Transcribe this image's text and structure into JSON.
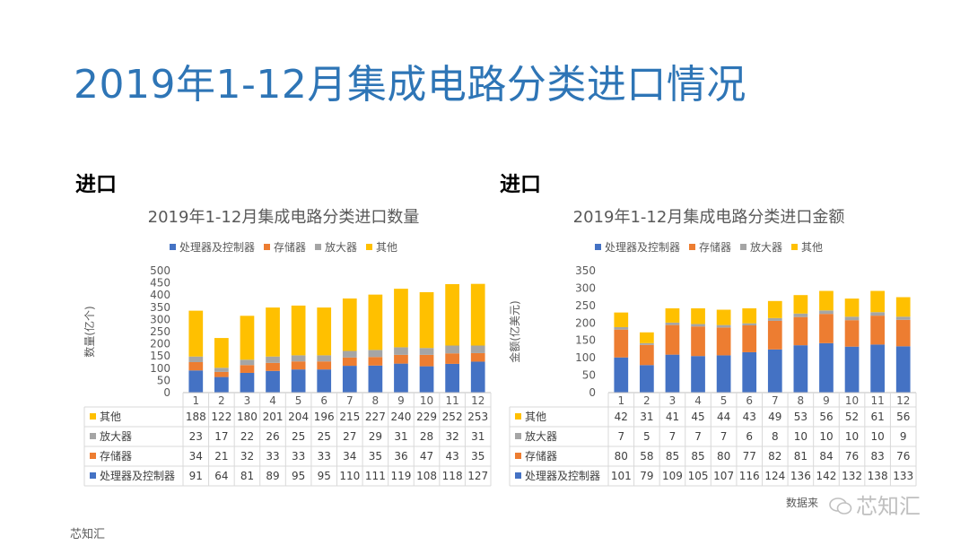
{
  "page": {
    "title": "2019年1-12月集成电路分类进口情况",
    "left_heading": "进口",
    "right_heading": "进口",
    "source_text": "数据来",
    "watermark": "芯知汇",
    "footer": "芯知汇"
  },
  "chart_data": [
    {
      "type": "bar",
      "stacked": true,
      "title": "2019年1-12月集成电路分类进口数量",
      "ylabel": "数量(亿个)",
      "ylim": [
        0,
        500
      ],
      "yticks": [
        0,
        50,
        100,
        150,
        200,
        250,
        300,
        350,
        400,
        450,
        500
      ],
      "categories": [
        "1",
        "2",
        "3",
        "4",
        "5",
        "6",
        "7",
        "8",
        "9",
        "10",
        "11",
        "12"
      ],
      "legend_position": "top",
      "series": [
        {
          "name": "处理器及控制器",
          "color": "#4472C4",
          "values": [
            91,
            64,
            81,
            89,
            95,
            95,
            110,
            111,
            119,
            108,
            118,
            127
          ]
        },
        {
          "name": "存储器",
          "color": "#ED7D31",
          "values": [
            34,
            21,
            32,
            33,
            33,
            33,
            34,
            35,
            36,
            47,
            43,
            35
          ]
        },
        {
          "name": "放大器",
          "color": "#A5A5A5",
          "values": [
            23,
            17,
            22,
            26,
            25,
            25,
            27,
            29,
            31,
            28,
            32,
            31
          ]
        },
        {
          "name": "其他",
          "color": "#FFC000",
          "values": [
            188,
            122,
            180,
            201,
            204,
            196,
            215,
            227,
            240,
            229,
            252,
            253
          ]
        }
      ]
    },
    {
      "type": "bar",
      "stacked": true,
      "title": "2019年1-12月集成电路分类进口金额",
      "ylabel": "金额(亿美元)",
      "ylim": [
        0,
        350
      ],
      "yticks": [
        0,
        50,
        100,
        150,
        200,
        250,
        300,
        350
      ],
      "categories": [
        "1",
        "2",
        "3",
        "4",
        "5",
        "6",
        "7",
        "8",
        "9",
        "10",
        "11",
        "12"
      ],
      "legend_position": "top",
      "series": [
        {
          "name": "处理器及控制器",
          "color": "#4472C4",
          "values": [
            101,
            79,
            109,
            105,
            107,
            116,
            124,
            136,
            142,
            132,
            138,
            133
          ]
        },
        {
          "name": "存储器",
          "color": "#ED7D31",
          "values": [
            80,
            58,
            85,
            85,
            80,
            77,
            82,
            81,
            84,
            76,
            83,
            76
          ]
        },
        {
          "name": "放大器",
          "color": "#A5A5A5",
          "values": [
            7,
            5,
            7,
            7,
            7,
            6,
            8,
            10,
            10,
            10,
            10,
            9
          ]
        },
        {
          "name": "其他",
          "color": "#FFC000",
          "values": [
            42,
            31,
            41,
            45,
            44,
            43,
            49,
            53,
            56,
            52,
            61,
            56
          ]
        }
      ]
    }
  ]
}
